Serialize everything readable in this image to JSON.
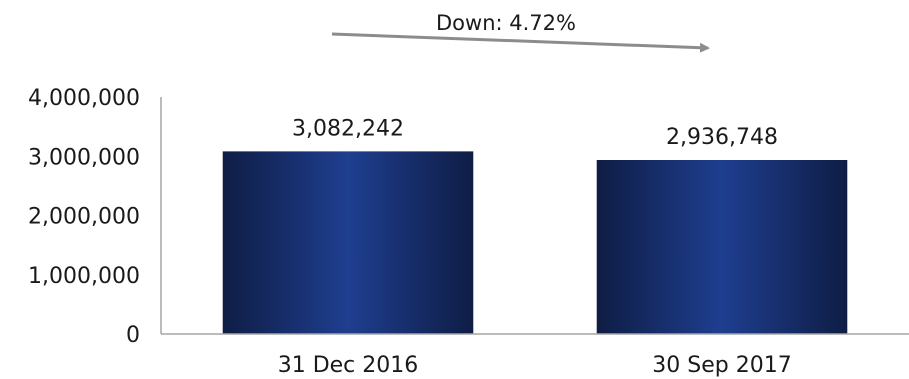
{
  "chart_data": {
    "type": "bar",
    "categories": [
      "31 Dec 2016",
      "30 Sep 2017"
    ],
    "values": [
      3082242,
      2936748
    ],
    "data_labels": [
      "3,082,242",
      "2,936,748"
    ],
    "yticks": [
      0,
      1000000,
      2000000,
      3000000,
      4000000
    ],
    "ytick_labels": [
      "0",
      "1,000,000",
      "2,000,000",
      "3,000,000",
      "4,000,000"
    ],
    "ylim": [
      0,
      4000000
    ],
    "grid": false,
    "legend": "none",
    "annotation": {
      "text": "Down: 4.72%",
      "direction": "down"
    },
    "colors": {
      "bar_dark": "#0f1d45",
      "bar_light": "#1e3e8f",
      "axis": "#a6a6a6",
      "arrow": "#8c8c8c"
    }
  }
}
